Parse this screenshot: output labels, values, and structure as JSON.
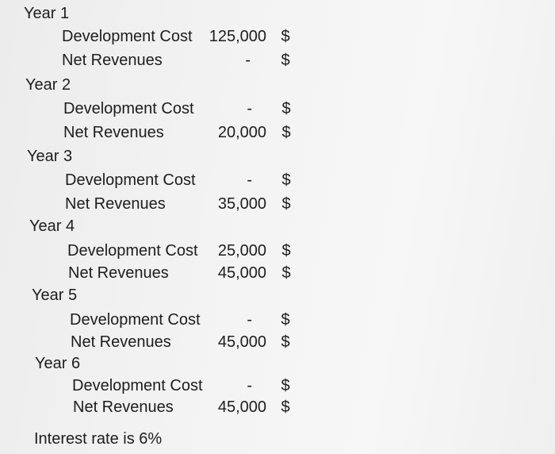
{
  "years": [
    {
      "label": "Year 1",
      "dev_label": "Development Cost",
      "dev_value": "125,000",
      "dev_currency": "$",
      "rev_label": "Net Revenues",
      "rev_value": "-",
      "rev_currency": "$"
    },
    {
      "label": "Year 2",
      "dev_label": "Development Cost",
      "dev_value": "-",
      "dev_currency": "$",
      "rev_label": "Net Revenues",
      "rev_value": "20,000",
      "rev_currency": "$"
    },
    {
      "label": "Year 3",
      "dev_label": "Development Cost",
      "dev_value": "-",
      "dev_currency": "$",
      "rev_label": "Net Revenues",
      "rev_value": "35,000",
      "rev_currency": "$"
    },
    {
      "label": "Year 4",
      "dev_label": "Development Cost",
      "dev_value": "25,000",
      "dev_currency": "$",
      "rev_label": "Net Revenues",
      "rev_value": "45,000",
      "rev_currency": "$"
    },
    {
      "label": "Year 5",
      "dev_label": "Development Cost",
      "dev_value": "-",
      "dev_currency": "$",
      "rev_label": "Net Revenues",
      "rev_value": "45,000",
      "rev_currency": "$"
    },
    {
      "label": "Year 6",
      "dev_label": "Development Cost",
      "dev_value": "-",
      "dev_currency": "$",
      "rev_label": "Net Revenues",
      "rev_value": "45,000",
      "rev_currency": "$"
    }
  ],
  "footer": {
    "interest_note": "Interest rate is 6%"
  }
}
